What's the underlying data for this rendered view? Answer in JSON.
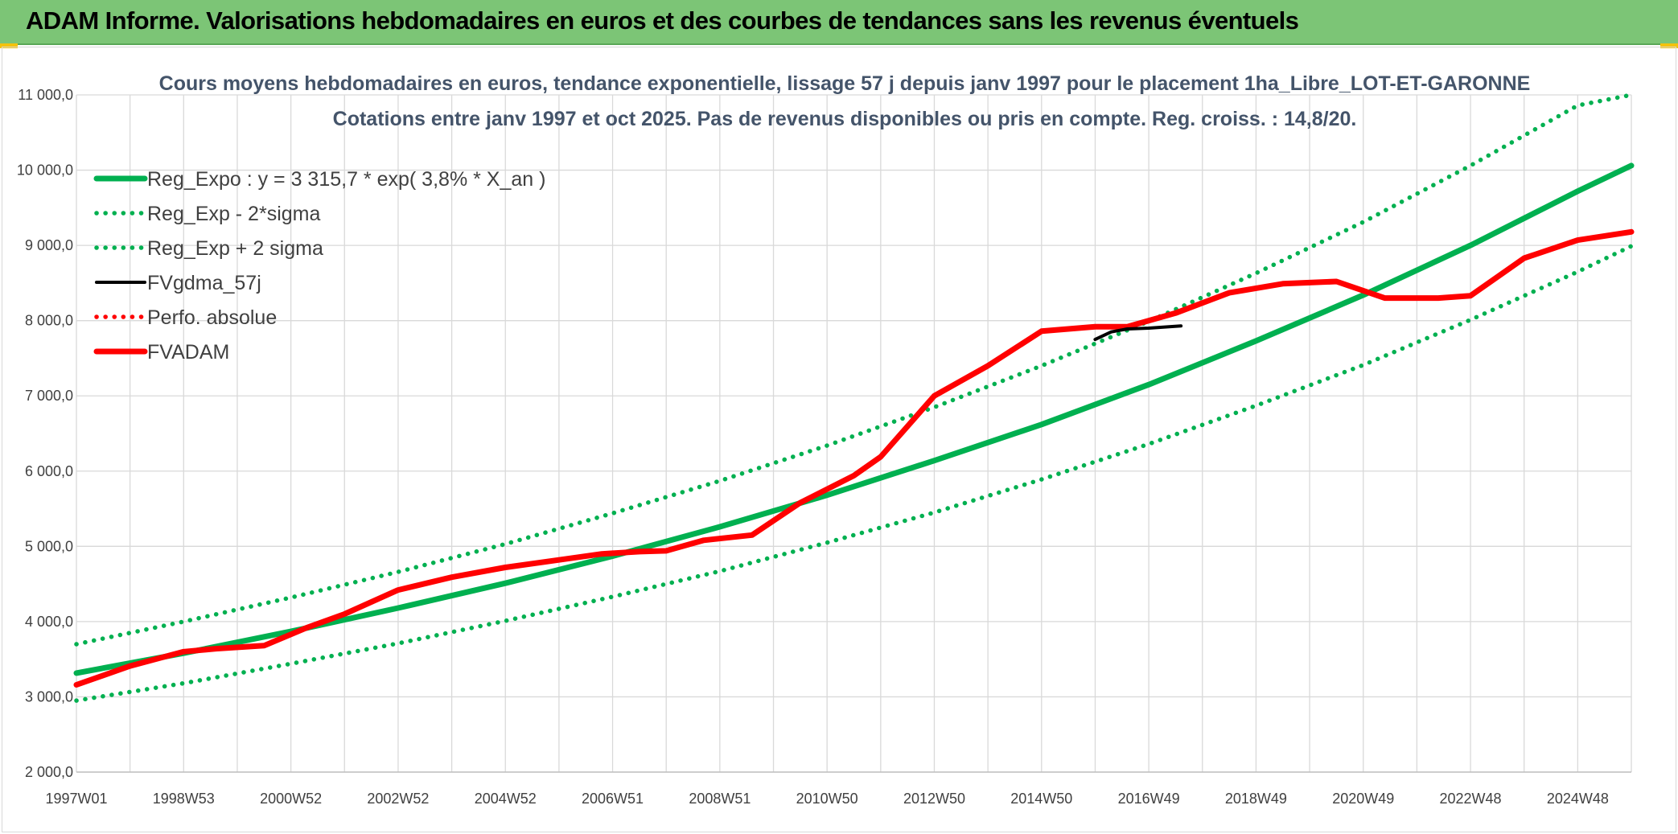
{
  "header": {
    "title": "ADAM Informe. Valorisations hebdomadaires en euros et des courbes de tendances sans les revenus éventuels"
  },
  "colors": {
    "header_bg": "#7cc576",
    "trend": "#00b050",
    "fvgdma": "#000000",
    "fvadam": "#ff0000",
    "title_text": "#44546a",
    "grid": "#d9d9d9"
  },
  "chart_data": {
    "type": "line",
    "title": "Cours moyens hebdomadaires en euros, tendance exponentielle, lissage 57 j depuis janv 1997 pour le placement 1ha_Libre_LOT-ET-GARONNE",
    "subtitle": "Cotations entre janv 1997 et oct 2025. Pas de revenus disponibles ou pris en compte. Reg. croiss. : 14,8/20.",
    "xlabel": "",
    "ylabel": "",
    "ylim": [
      2000,
      11000
    ],
    "yticks": [
      2000,
      3000,
      4000,
      5000,
      6000,
      7000,
      8000,
      9000,
      10000,
      11000
    ],
    "ytick_labels": [
      "2 000,0",
      "3 000,0",
      "4 000,0",
      "5 000,0",
      "6 000,0",
      "7 000,0",
      "8 000,0",
      "9 000,0",
      "10 000,0",
      "11 000,0"
    ],
    "xlim": [
      1997.0,
      2026.0
    ],
    "xticks": [
      1997.0,
      1999.0,
      2001.0,
      2003.0,
      2005.0,
      2007.0,
      2009.0,
      2011.0,
      2013.0,
      2015.0,
      2017.0,
      2019.0,
      2021.0,
      2023.0,
      2025.0
    ],
    "xtick_labels": [
      "1997W01",
      "1998W53",
      "2000W52",
      "2002W52",
      "2004W52",
      "2006W51",
      "2008W51",
      "2010W50",
      "2012W50",
      "2014W50",
      "2016W49",
      "2018W49",
      "2020W49",
      "2022W48",
      "2024W48"
    ],
    "grid": true,
    "legend_position": "top-left",
    "series": [
      {
        "name": "Reg_Expo : y = 3 315,7 * exp( 3,8% *  X_an )",
        "style": "solid-thick",
        "color": "#00b050",
        "x": [
          1997,
          1999,
          2001,
          2003,
          2005,
          2007,
          2009,
          2011,
          2013,
          2015,
          2017,
          2019,
          2021,
          2023,
          2025,
          2026
        ],
        "values": [
          3316,
          3580,
          3870,
          4180,
          4510,
          4870,
          5260,
          5680,
          6140,
          6620,
          7150,
          7730,
          8340,
          9000,
          9720,
          10060
        ]
      },
      {
        "name": "Reg_Exp - 2*sigma",
        "style": "dotted",
        "color": "#00b050",
        "x": [
          1997,
          1999,
          2001,
          2003,
          2005,
          2007,
          2009,
          2011,
          2013,
          2015,
          2017,
          2019,
          2021,
          2023,
          2025,
          2026
        ],
        "values": [
          2950,
          3180,
          3440,
          3710,
          4010,
          4330,
          4670,
          5050,
          5450,
          5890,
          6360,
          6870,
          7410,
          8010,
          8650,
          8990
        ]
      },
      {
        "name": "Reg_Exp + 2 sigma",
        "style": "dotted",
        "color": "#00b050",
        "x": [
          1997,
          1999,
          2001,
          2003,
          2005,
          2007,
          2009,
          2011,
          2013,
          2015,
          2017,
          2019,
          2021,
          2023,
          2025,
          2026
        ],
        "values": [
          3700,
          4000,
          4320,
          4660,
          5030,
          5440,
          5870,
          6340,
          6850,
          7400,
          7990,
          8630,
          9310,
          10060,
          10860,
          11000
        ]
      },
      {
        "name": "FVgdma_57j",
        "style": "solid",
        "color": "#000000",
        "x": [
          2016.0,
          2016.3,
          2016.6,
          2017.0,
          2017.6
        ],
        "values": [
          7750,
          7850,
          7890,
          7900,
          7930
        ]
      },
      {
        "name": "Perfo. absolue",
        "style": "dotted",
        "color": "#ff0000",
        "x": [],
        "values": []
      },
      {
        "name": "FVADAM",
        "style": "solid-thick",
        "color": "#ff0000",
        "x": [
          1997.0,
          1998.0,
          1999.0,
          1999.6,
          2000.5,
          2001.3,
          2002.0,
          2003.0,
          2004.0,
          2005.0,
          2006.0,
          2006.8,
          2007.5,
          2008.0,
          2008.7,
          2009.6,
          2010.5,
          2011.5,
          2012.0,
          2013.0,
          2014.0,
          2015.0,
          2016.0,
          2016.6,
          2017.5,
          2018.5,
          2019.5,
          2020.5,
          2021.4,
          2022.4,
          2023.0,
          2023.6,
          2024.0,
          2025.0,
          2026.0
        ],
        "values": [
          3160,
          3410,
          3600,
          3640,
          3680,
          3920,
          4100,
          4420,
          4590,
          4720,
          4820,
          4900,
          4930,
          4940,
          5080,
          5150,
          5580,
          5940,
          6190,
          7000,
          7400,
          7860,
          7920,
          7920,
          8100,
          8370,
          8490,
          8520,
          8300,
          8300,
          8330,
          8630,
          8830,
          9070,
          9180
        ]
      }
    ]
  }
}
